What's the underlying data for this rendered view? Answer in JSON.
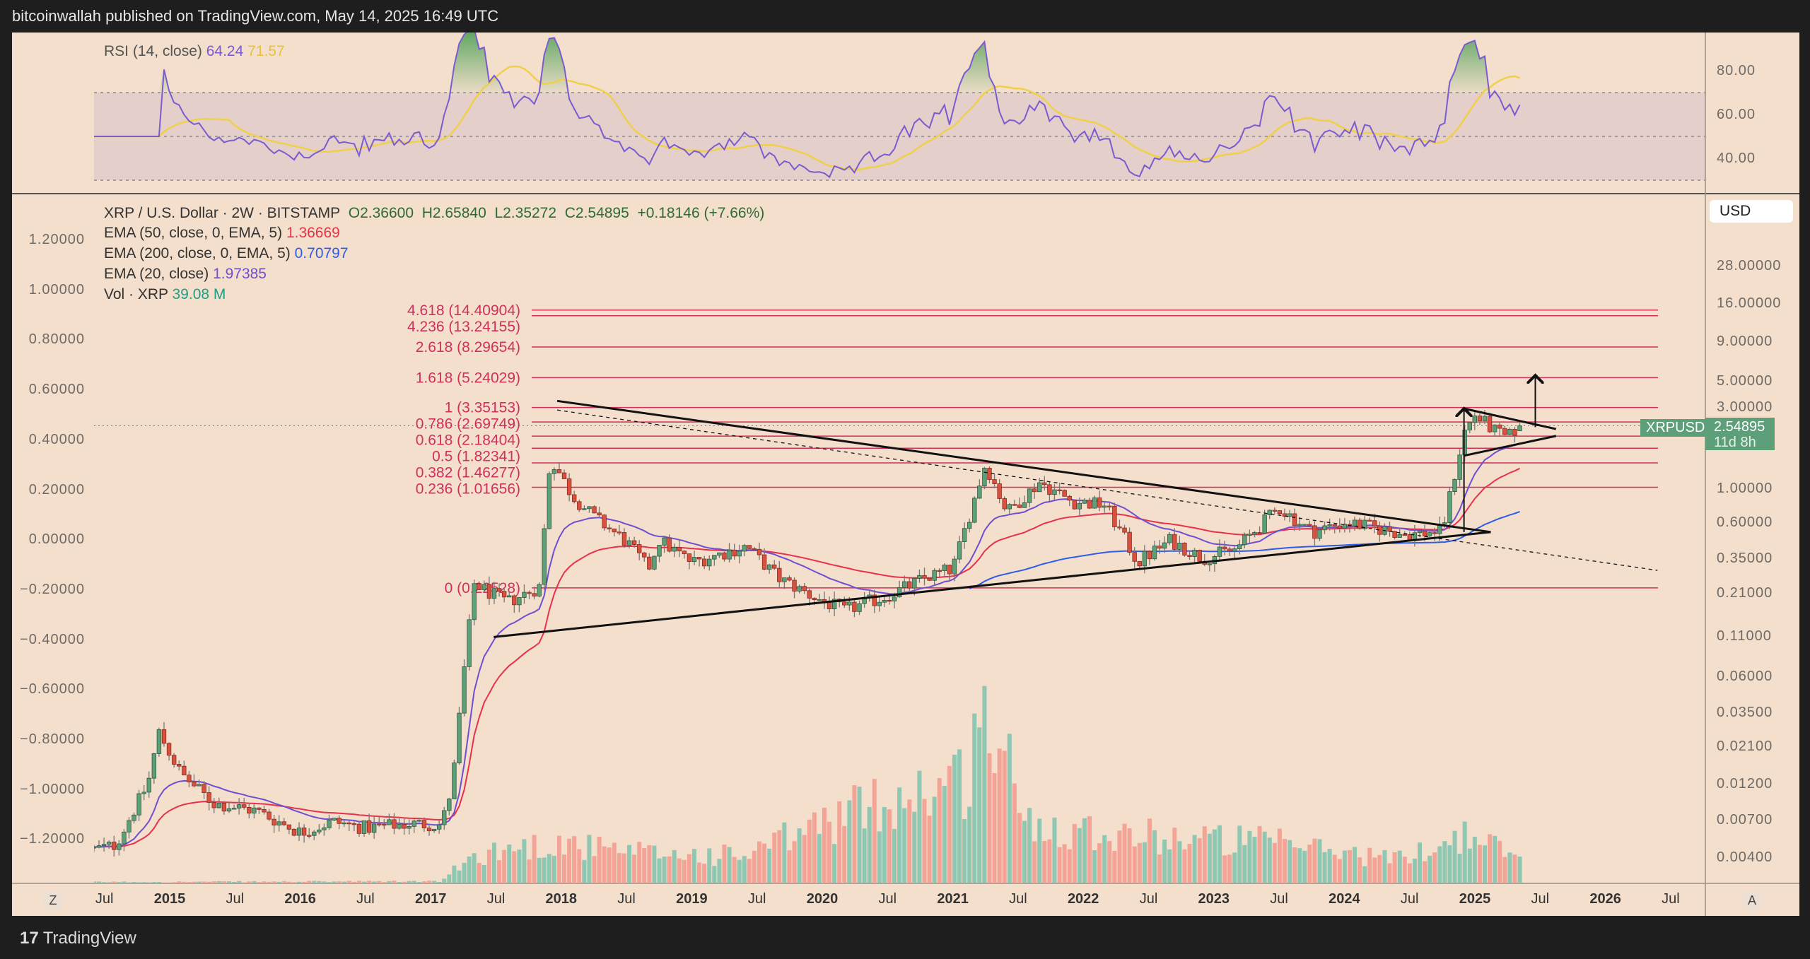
{
  "header": {
    "title": "bitcoinwallah published on TradingView.com, May 14, 2025 16:49 UTC"
  },
  "footer": {
    "logo_mark": "17",
    "logo_text": "TradingView"
  },
  "rsi_legend": {
    "name": "RSI (14, close)",
    "value": "64.24",
    "ma_value": "71.57"
  },
  "legend": {
    "symbol": "XRP / U.S. Dollar · 2W · BITSTAMP",
    "open": "O2.36600",
    "high": "H2.65840",
    "low": "L2.35272",
    "close": "C2.54895",
    "change": "+0.18146 (+7.66%)",
    "ema50_name": "EMA (50, close, 0, EMA, 5)",
    "ema50_value": "1.36669",
    "ema200_name": "EMA (200, close, 0, EMA, 5)",
    "ema200_value": "0.70797",
    "ema20_name": "EMA (20, close)",
    "ema20_value": "1.97385",
    "vol_name": "Vol · XRP",
    "vol_value": "39.08 M"
  },
  "currency_button": "USD",
  "price_tag": {
    "symbol": "XRPUSD",
    "price": "2.54895",
    "countdown": "11d 8h"
  },
  "axis_buttons": {
    "left": "Z",
    "right": "A"
  },
  "colors": {
    "up": "#5c9f78",
    "down": "#d9503f",
    "ema50": "#e8314a",
    "ema200": "#2e5be8",
    "ema20": "#6f4fd0",
    "rsi": "#7a5bd0",
    "rsi_ma": "#f0d04a",
    "fib": "#d0305a",
    "vol_up": "#7cc3ad",
    "vol_down": "#f29a8c",
    "background": "#f3dfcc"
  },
  "chart_data": {
    "type": "candlestick",
    "symbol": "XRPUSD",
    "interval": "2W",
    "scale": "log",
    "right_axis_ticks": [
      "28.00000",
      "16.00000",
      "9.00000",
      "5.00000",
      "3.00000",
      "1.00000",
      "0.60000",
      "0.35000",
      "0.21000",
      "0.11000",
      "0.06000",
      "0.03500",
      "0.02100",
      "0.01200",
      "0.00700",
      "0.00400"
    ],
    "left_axis_ticks": [
      "1.20000",
      "1.00000",
      "0.80000",
      "0.60000",
      "0.40000",
      "0.20000",
      "0.00000",
      "−0.20000",
      "−0.40000",
      "−0.60000",
      "−0.80000",
      "−1.00000",
      "−1.20000"
    ],
    "rsi_axis_ticks": [
      "80.00",
      "60.00",
      "40.00"
    ],
    "time_ticks": [
      {
        "label": "Jul",
        "t": "2014-07"
      },
      {
        "label": "2015",
        "t": "2015-01"
      },
      {
        "label": "Jul",
        "t": "2015-07"
      },
      {
        "label": "2016",
        "t": "2016-01"
      },
      {
        "label": "Jul",
        "t": "2016-07"
      },
      {
        "label": "2017",
        "t": "2017-01"
      },
      {
        "label": "Jul",
        "t": "2017-07"
      },
      {
        "label": "2018",
        "t": "2018-01"
      },
      {
        "label": "Jul",
        "t": "2018-07"
      },
      {
        "label": "2019",
        "t": "2019-01"
      },
      {
        "label": "Jul",
        "t": "2019-07"
      },
      {
        "label": "2020",
        "t": "2020-01"
      },
      {
        "label": "Jul",
        "t": "2020-07"
      },
      {
        "label": "2021",
        "t": "2021-01"
      },
      {
        "label": "Jul",
        "t": "2021-07"
      },
      {
        "label": "2022",
        "t": "2022-01"
      },
      {
        "label": "Jul",
        "t": "2022-07"
      },
      {
        "label": "2023",
        "t": "2023-01"
      },
      {
        "label": "Jul",
        "t": "2023-07"
      },
      {
        "label": "2024",
        "t": "2024-01"
      },
      {
        "label": "Jul",
        "t": "2024-07"
      },
      {
        "label": "2025",
        "t": "2025-01"
      },
      {
        "label": "Jul",
        "t": "2025-07"
      },
      {
        "label": "2026",
        "t": "2026-01"
      },
      {
        "label": "Jul",
        "t": "2026-07"
      }
    ],
    "price_path": [
      [
        "2014-06",
        0.0045
      ],
      [
        "2014-08",
        0.0048
      ],
      [
        "2014-11",
        0.012
      ],
      [
        "2014-12",
        0.026
      ],
      [
        "2015-02",
        0.014
      ],
      [
        "2015-05",
        0.009
      ],
      [
        "2015-09",
        0.008
      ],
      [
        "2016-01",
        0.0058
      ],
      [
        "2016-04",
        0.0068
      ],
      [
        "2016-07",
        0.0062
      ],
      [
        "2016-11",
        0.0066
      ],
      [
        "2017-02",
        0.0065
      ],
      [
        "2017-03",
        0.012
      ],
      [
        "2017-04",
        0.06
      ],
      [
        "2017-05",
        0.24
      ],
      [
        "2017-08",
        0.18
      ],
      [
        "2017-11",
        0.23
      ],
      [
        "2017-12",
        1.6
      ],
      [
        "2018-02",
        0.9
      ],
      [
        "2018-04",
        0.65
      ],
      [
        "2018-07",
        0.45
      ],
      [
        "2018-09",
        0.3
      ],
      [
        "2018-10",
        0.46
      ],
      [
        "2019-01",
        0.33
      ],
      [
        "2019-06",
        0.42
      ],
      [
        "2019-09",
        0.26
      ],
      [
        "2019-12",
        0.2
      ],
      [
        "2020-03",
        0.16
      ],
      [
        "2020-07",
        0.2
      ],
      [
        "2020-11",
        0.27
      ],
      [
        "2021-01",
        0.3
      ],
      [
        "2021-04",
        1.45
      ],
      [
        "2021-06",
        0.7
      ],
      [
        "2021-09",
        1.1
      ],
      [
        "2021-12",
        0.82
      ],
      [
        "2022-03",
        0.78
      ],
      [
        "2022-06",
        0.33
      ],
      [
        "2022-09",
        0.46
      ],
      [
        "2022-12",
        0.35
      ],
      [
        "2023-03",
        0.4
      ],
      [
        "2023-07",
        0.75
      ],
      [
        "2023-10",
        0.52
      ],
      [
        "2024-01",
        0.6
      ],
      [
        "2024-04",
        0.55
      ],
      [
        "2024-07",
        0.5
      ],
      [
        "2024-10",
        0.53
      ],
      [
        "2024-11",
        1.1
      ],
      [
        "2024-12",
        2.3
      ],
      [
        "2025-01",
        3.0
      ],
      [
        "2025-03",
        2.3
      ],
      [
        "2025-04",
        2.1
      ],
      [
        "2025-05",
        2.54895
      ]
    ],
    "last_bar": {
      "open": 2.366,
      "high": 2.6584,
      "low": 2.35272,
      "close": 2.54895
    },
    "volume_path_millions": [
      [
        "2014-06",
        2
      ],
      [
        "2017-02",
        3
      ],
      [
        "2017-04",
        30
      ],
      [
        "2017-06",
        45
      ],
      [
        "2018-01",
        60
      ],
      [
        "2018-06",
        45
      ],
      [
        "2019-06",
        40
      ],
      [
        "2020-03",
        100
      ],
      [
        "2020-07",
        120
      ],
      [
        "2020-11",
        140
      ],
      [
        "2021-02",
        150
      ],
      [
        "2021-04",
        250
      ],
      [
        "2021-08",
        90
      ],
      [
        "2022-06",
        70
      ],
      [
        "2023-06",
        60
      ],
      [
        "2024-06",
        35
      ],
      [
        "2024-12",
        70
      ],
      [
        "2025-05",
        39.08
      ]
    ],
    "fibonacci": [
      {
        "label": "4.618 (14.40904)",
        "price": 14.40904
      },
      {
        "label": "4.236 (13.24155)",
        "price": 13.24155
      },
      {
        "label": "2.618 (8.29654)",
        "price": 8.29654
      },
      {
        "label": "1.618 (5.24029)",
        "price": 5.24029
      },
      {
        "label": "1 (3.35153)",
        "price": 3.35153
      },
      {
        "label": "0.786 (2.69749)",
        "price": 2.69749
      },
      {
        "label": "0.618 (2.18404)",
        "price": 2.18404
      },
      {
        "label": "0.5 (1.82341)",
        "price": 1.82341
      },
      {
        "label": "0.382 (1.46277)",
        "price": 1.46277
      },
      {
        "label": "0.236 (1.01656)",
        "price": 1.01656
      },
      {
        "label": "0 (0.22528)",
        "price": 0.22528
      }
    ],
    "trendlines": [
      {
        "name": "triangle-upper",
        "style": "solid",
        "from": [
          "2017-12-20",
          3.7
        ],
        "to": [
          "2025-02-15",
          0.52
        ]
      },
      {
        "name": "triangle-lower",
        "style": "solid",
        "from": [
          "2017-06-25",
          0.108
        ],
        "to": [
          "2025-02-15",
          0.52
        ]
      },
      {
        "name": "dashed-projection",
        "style": "dashed",
        "from": [
          "2017-12-20",
          3.23
        ],
        "to": [
          "2026-05-25",
          0.293
        ]
      },
      {
        "name": "pennant-upper",
        "style": "solid",
        "from": [
          "2024-12-01",
          3.3
        ],
        "to": [
          "2025-08-15",
          2.43
        ]
      },
      {
        "name": "pennant-lower",
        "style": "solid",
        "from": [
          "2024-12-01",
          1.63
        ],
        "to": [
          "2025-08-15",
          2.19
        ]
      }
    ],
    "arrows": [
      {
        "name": "flagpole-arrow",
        "from": [
          "2024-12-01",
          0.52
        ],
        "to": [
          "2024-12-01",
          3.3
        ]
      },
      {
        "name": "target-arrow",
        "from": [
          "2025-06-18",
          2.5
        ],
        "to": [
          "2025-06-18",
          5.43
        ]
      }
    ],
    "rsi": {
      "period": 14,
      "upper": 70,
      "middle": 50,
      "lower": 30
    }
  }
}
